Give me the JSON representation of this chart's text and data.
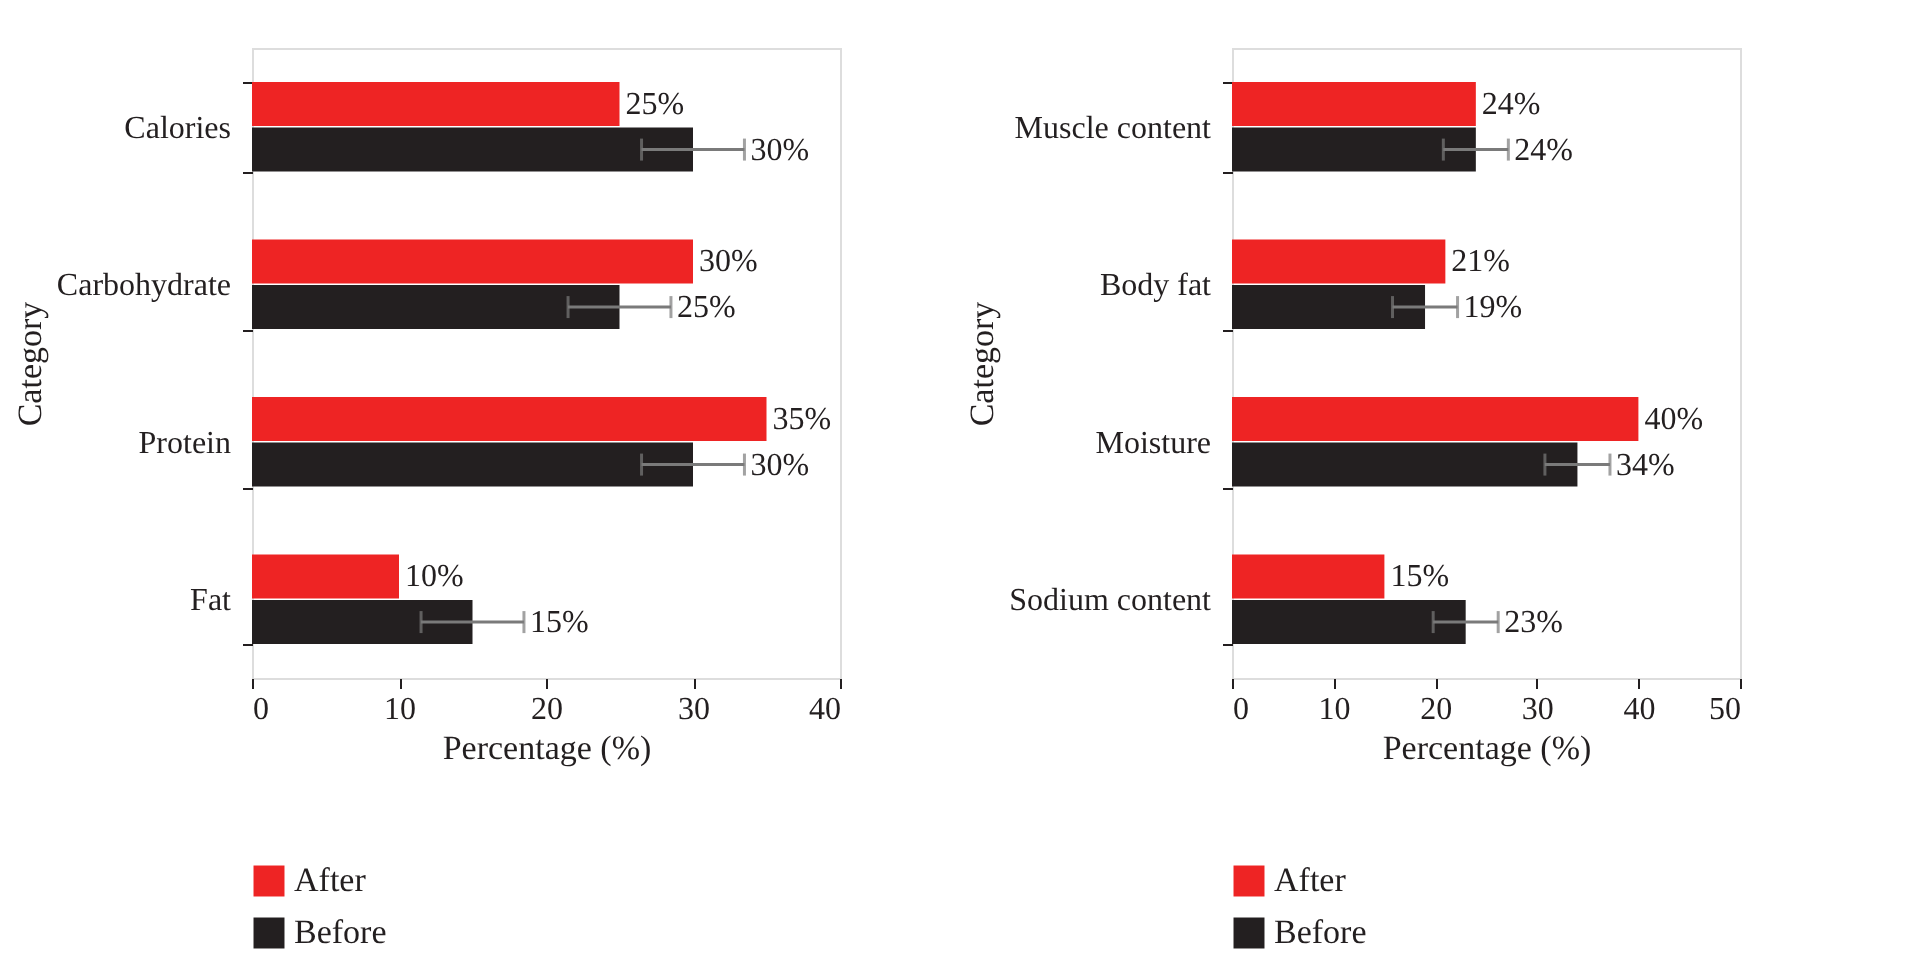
{
  "chart_data": [
    {
      "type": "bar",
      "orientation": "horizontal",
      "categories": [
        "Calories",
        "Carbohydrate",
        "Protein",
        "Fat"
      ],
      "xlabel": "Percentage (%)",
      "ylabel": "Category",
      "xlim": [
        0,
        40
      ],
      "xticks": [
        0,
        10,
        20,
        30,
        40
      ],
      "grid": false,
      "legend": "bottom",
      "series": [
        {
          "name": "After",
          "color": "#ee2424",
          "values": [
            25,
            30,
            35,
            10
          ],
          "value_labels": [
            "25%",
            "30%",
            "35%",
            "10%"
          ]
        },
        {
          "name": "Before",
          "color": "#231f20",
          "values": [
            30,
            25,
            30,
            15
          ],
          "errors": [
            3.5,
            3.5,
            3.5,
            3.5
          ],
          "value_labels": [
            "30%",
            "25%",
            "30%",
            "15%"
          ]
        }
      ]
    },
    {
      "type": "bar",
      "orientation": "horizontal",
      "categories": [
        "Muscle content",
        "Body fat",
        "Moisture",
        "Sodium content"
      ],
      "xlabel": "Percentage (%)",
      "ylabel": "Category",
      "xlim": [
        0,
        50
      ],
      "xticks": [
        0,
        10,
        20,
        30,
        40,
        50
      ],
      "grid": false,
      "legend": "bottom",
      "series": [
        {
          "name": "After",
          "color": "#ee2424",
          "values": [
            24,
            21,
            40,
            15
          ],
          "value_labels": [
            "24%",
            "21%",
            "40%",
            "15%"
          ]
        },
        {
          "name": "Before",
          "color": "#231f20",
          "values": [
            24,
            19,
            34,
            23
          ],
          "errors": [
            3.2,
            3.2,
            3.2,
            3.2
          ],
          "value_labels": [
            "24%",
            "19%",
            "34%",
            "23%"
          ]
        }
      ]
    }
  ]
}
